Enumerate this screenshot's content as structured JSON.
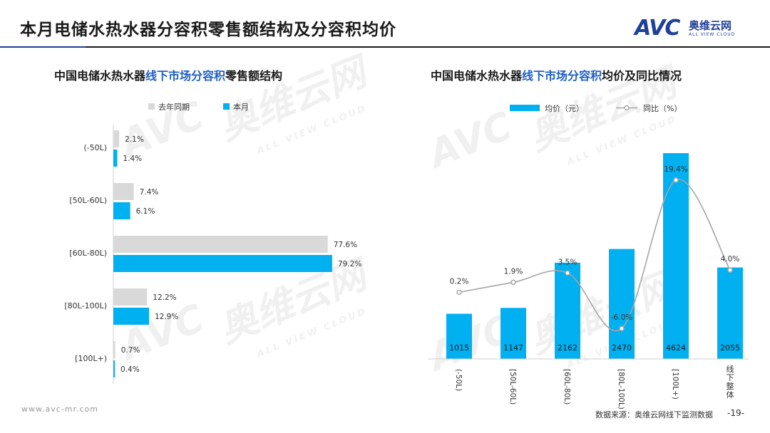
{
  "header": {
    "title": "本月电储水热水器分容积零售额结构及分容积均价",
    "logo_mark": "AVC",
    "logo_cn": "奥维云网",
    "logo_en": "ALL VIEW CLOUD"
  },
  "watermark": {
    "mark": "AVC",
    "cn": "奥维云网",
    "en": "ALL VIEW CLOUD"
  },
  "left_chart": {
    "title_pre": "中国电储水热水器",
    "title_hl": "线下市场分容积",
    "title_post": "零售额结构"
  },
  "right_chart": {
    "title_pre": "中国电储水热水器",
    "title_hl": "线下市场分容积",
    "title_post": "均价及同比情况"
  },
  "chart_data": [
    {
      "type": "bar",
      "orientation": "horizontal",
      "title": "中国电储水热水器线下市场分容积零售额结构",
      "categories": [
        "(-50L)",
        "[50L-60L)",
        "[60L-80L)",
        "[80L-100L)",
        "[100L+)"
      ],
      "series": [
        {
          "name": "去年同期",
          "values": [
            2.1,
            7.4,
            77.6,
            12.2,
            0.7
          ],
          "color": "#d9d9d9"
        },
        {
          "name": "本月",
          "values": [
            1.4,
            6.1,
            79.2,
            12.9,
            0.4
          ],
          "color": "#00b0f0"
        }
      ],
      "value_unit": "%",
      "legend_position": "top",
      "grid": false
    },
    {
      "type": "bar+line",
      "title": "中国电储水热水器线下市场分容积均价及同比情况",
      "categories": [
        "(-50L)",
        "[50L-60L)",
        "[60L-80L)",
        "[80L-100L)",
        "[100L+)",
        "线下整体"
      ],
      "series": [
        {
          "name": "均价（元）",
          "type": "bar",
          "values": [
            1015,
            1147,
            2162,
            2470,
            4624,
            2055
          ],
          "color": "#00b0f0"
        },
        {
          "name": "同比（%）",
          "type": "line",
          "values": [
            0.2,
            1.9,
            3.5,
            -6.0,
            19.4,
            4.0
          ],
          "color": "#a6a6a6"
        }
      ],
      "legend_position": "top",
      "grid": false
    }
  ],
  "footer": {
    "url": "www.avc-mr.com",
    "source": "数据来源：奥维云网线下监测数据",
    "page": "-19-"
  }
}
